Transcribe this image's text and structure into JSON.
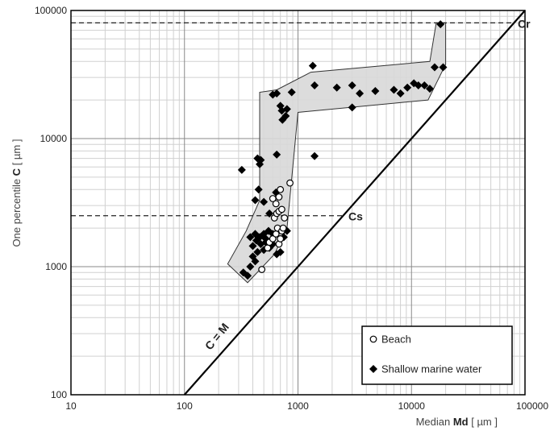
{
  "chart_data": {
    "type": "scatter",
    "xscale": "log",
    "yscale": "log",
    "xlim": [
      10,
      100000
    ],
    "ylim": [
      100,
      100000
    ],
    "grid": true,
    "xticks": [
      {
        "v": 10,
        "label": "10"
      },
      {
        "v": 100,
        "label": "100"
      },
      {
        "v": 1000,
        "label": "1000"
      },
      {
        "v": 10000,
        "label": "10000"
      },
      {
        "v": 100000,
        "label": "100000"
      }
    ],
    "yticks": [
      {
        "v": 100,
        "label": "100"
      },
      {
        "v": 1000,
        "label": "1000"
      },
      {
        "v": 10000,
        "label": "10000"
      },
      {
        "v": 100000,
        "label": "100000"
      }
    ],
    "xlabel": {
      "pre": "Median ",
      "bold": "Md",
      "post": " [ µm ]"
    },
    "ylabel": {
      "pre": "One percentile ",
      "bold": "C",
      "post": " [ µm ]"
    },
    "legend_position": "bottom-right",
    "reference_lines": [
      {
        "label": "Cr",
        "y": 80000
      },
      {
        "label": "Cs",
        "y": 2500
      }
    ],
    "diagonal": {
      "label": "C = M"
    },
    "envelope": [
      [
        240,
        1050
      ],
      [
        360,
        750
      ],
      [
        620,
        1250
      ],
      [
        800,
        2000
      ],
      [
        1000,
        16000
      ],
      [
        14000,
        20000
      ],
      [
        20000,
        38000
      ],
      [
        20000,
        80000
      ],
      [
        16500,
        80000
      ],
      [
        14500,
        40000
      ],
      [
        1300,
        33000
      ],
      [
        650,
        24000
      ],
      [
        460,
        23000
      ],
      [
        460,
        3300
      ],
      [
        350,
        1900
      ]
    ],
    "series": [
      {
        "name": "Beach",
        "marker": "circle",
        "points": [
          [
            480,
            950
          ],
          [
            540,
            1400
          ],
          [
            560,
            1550
          ],
          [
            600,
            1650
          ],
          [
            640,
            1800
          ],
          [
            680,
            1500
          ],
          [
            660,
            2000
          ],
          [
            700,
            1650
          ],
          [
            720,
            1900
          ],
          [
            740,
            2000
          ],
          [
            620,
            2400
          ],
          [
            650,
            2600
          ],
          [
            680,
            2700
          ],
          [
            720,
            2800
          ],
          [
            760,
            2400
          ],
          [
            640,
            3100
          ],
          [
            600,
            3400
          ],
          [
            680,
            3500
          ],
          [
            700,
            4000
          ],
          [
            850,
            4500
          ]
        ]
      },
      {
        "name": "Shallow marine water",
        "marker": "diamond",
        "points": [
          [
            330,
            900
          ],
          [
            360,
            850
          ],
          [
            380,
            1000
          ],
          [
            400,
            1200
          ],
          [
            420,
            1100
          ],
          [
            440,
            1300
          ],
          [
            400,
            1450
          ],
          [
            430,
            1600
          ],
          [
            460,
            1700
          ],
          [
            470,
            1500
          ],
          [
            500,
            1350
          ],
          [
            520,
            1550
          ],
          [
            560,
            1400
          ],
          [
            420,
            1800
          ],
          [
            380,
            1700
          ],
          [
            500,
            1800
          ],
          [
            550,
            1900
          ],
          [
            600,
            1500
          ],
          [
            700,
            1300
          ],
          [
            650,
            1250
          ],
          [
            750,
            1700
          ],
          [
            800,
            1900
          ],
          [
            520,
            1650
          ],
          [
            600,
            1800
          ],
          [
            320,
            5700
          ],
          [
            420,
            3300
          ],
          [
            450,
            4000
          ],
          [
            500,
            3200
          ],
          [
            560,
            2600
          ],
          [
            440,
            7000
          ],
          [
            460,
            6300
          ],
          [
            470,
            6800
          ],
          [
            640,
            3800
          ],
          [
            650,
            7500
          ],
          [
            1400,
            7300
          ],
          [
            780,
            15000
          ],
          [
            720,
            16500
          ],
          [
            800,
            17000
          ],
          [
            880,
            23000
          ],
          [
            600,
            22000
          ],
          [
            650,
            22500
          ],
          [
            700,
            18000
          ],
          [
            730,
            14000
          ],
          [
            1400,
            26000
          ],
          [
            1350,
            37000
          ],
          [
            2200,
            25000
          ],
          [
            3000,
            17500
          ],
          [
            3000,
            26000
          ],
          [
            3500,
            22500
          ],
          [
            4800,
            23500
          ],
          [
            7000,
            24000
          ],
          [
            8000,
            22500
          ],
          [
            9200,
            25000
          ],
          [
            10500,
            27000
          ],
          [
            11500,
            26000
          ],
          [
            13000,
            26000
          ],
          [
            14500,
            24500
          ],
          [
            16000,
            36000
          ],
          [
            19000,
            36000
          ],
          [
            18000,
            78000
          ]
        ]
      }
    ]
  }
}
